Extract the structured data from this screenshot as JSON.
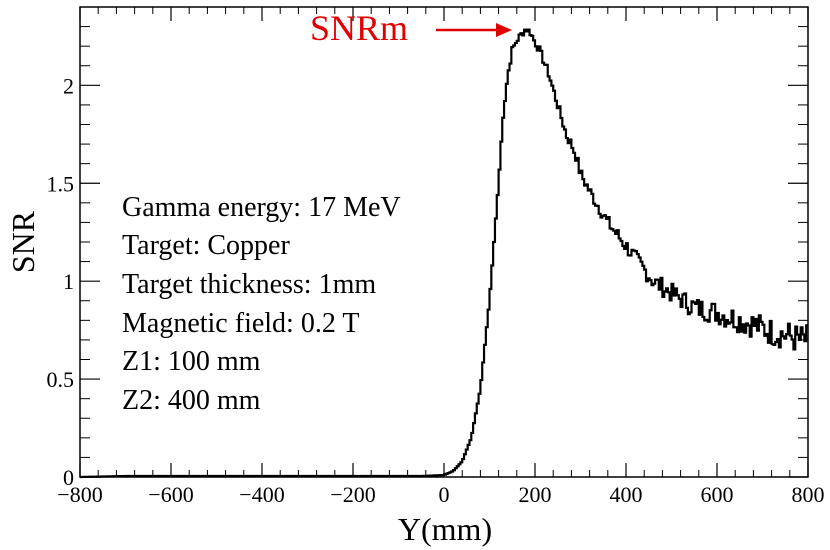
{
  "chart_data": {
    "type": "line",
    "style": "histogram-step",
    "xlabel": "Y(mm)",
    "ylabel": "SNR",
    "xlim": [
      -800,
      800
    ],
    "ylim": [
      0,
      2.4
    ],
    "x_ticks": [
      -800,
      -600,
      -400,
      -200,
      0,
      200,
      400,
      600,
      800
    ],
    "x_tick_labels": [
      "−800",
      "−600",
      "−400",
      "−200",
      "0",
      "200",
      "400",
      "600",
      "800"
    ],
    "y_ticks": [
      0,
      0.5,
      1,
      1.5,
      2
    ],
    "y_tick_labels": [
      "0",
      "0.5",
      "1",
      "1.5",
      "2"
    ],
    "grid": false,
    "series": [
      {
        "name": "SNR",
        "color": "#000000",
        "x": [
          -800,
          -700,
          -600,
          -500,
          -400,
          -300,
          -200,
          -100,
          -50,
          0,
          20,
          40,
          60,
          80,
          100,
          110,
          120,
          130,
          140,
          150,
          160,
          170,
          180,
          190,
          200,
          210,
          220,
          230,
          240,
          250,
          260,
          270,
          280,
          290,
          300,
          320,
          340,
          360,
          380,
          400,
          420,
          440,
          460,
          480,
          500,
          520,
          540,
          560,
          580,
          600,
          620,
          640,
          660,
          680,
          700,
          720,
          740,
          760,
          780,
          800
        ],
        "y": [
          0.0,
          0.005,
          0.005,
          0.005,
          0.005,
          0.005,
          0.005,
          0.005,
          0.005,
          0.01,
          0.03,
          0.08,
          0.2,
          0.45,
          0.9,
          1.2,
          1.5,
          1.85,
          2.05,
          2.18,
          2.23,
          2.26,
          2.29,
          2.27,
          2.22,
          2.18,
          2.12,
          2.06,
          1.98,
          1.9,
          1.82,
          1.74,
          1.7,
          1.64,
          1.55,
          1.46,
          1.38,
          1.3,
          1.24,
          1.18,
          1.12,
          1.06,
          1.0,
          0.97,
          0.94,
          0.91,
          0.88,
          0.86,
          0.85,
          0.84,
          0.82,
          0.81,
          0.79,
          0.78,
          0.76,
          0.74,
          0.73,
          0.72,
          0.7,
          0.7
        ]
      }
    ],
    "annotations": [
      "Gamma energy: 17 MeV",
      "Target: Copper",
      "Target thickness: 1mm",
      "Magnetic field: 0.2 T",
      "Z1: 100 mm",
      "Z2: 400 mm"
    ],
    "peak_label": "SNRm",
    "peak_x": 185,
    "peak_y": 2.3,
    "peak_color": "#e00000"
  }
}
